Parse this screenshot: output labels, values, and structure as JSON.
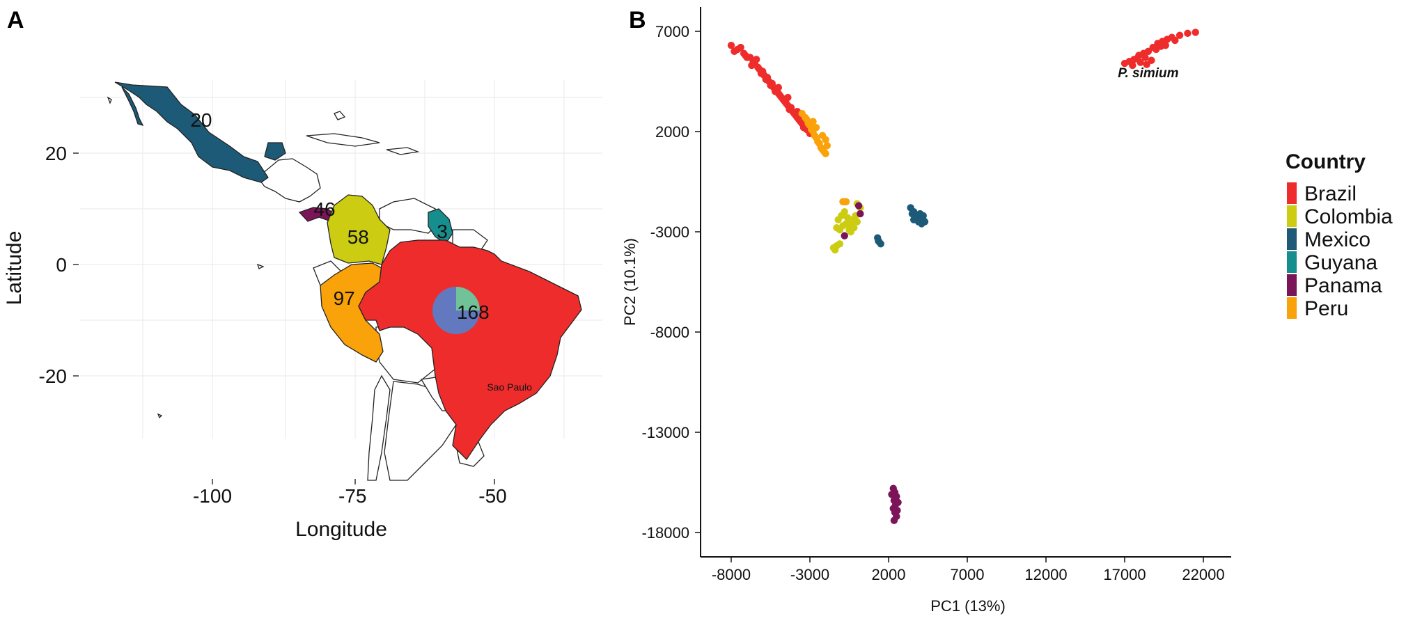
{
  "panels": {
    "a": "A",
    "b": "B"
  },
  "colors": {
    "Brazil": "#ef2c2c",
    "Colombia": "#cccd12",
    "Mexico": "#1c5a77",
    "Guyana": "#178e8e",
    "Panama": "#7b1459",
    "Peru": "#f9a20a",
    "pie_blue": "#6279bf",
    "pie_green": "#72c299"
  },
  "chart_data": [
    {
      "type": "map",
      "panel": "A",
      "xlabel": "Longitude",
      "ylabel": "Latitude",
      "xlim": [
        -120,
        -30
      ],
      "ylim": [
        -35,
        32
      ],
      "xticks": [
        -100,
        -75,
        -50
      ],
      "yticks": [
        -20,
        0,
        20
      ],
      "sample_counts": [
        {
          "country": "Mexico",
          "n": "20",
          "lon": -102,
          "lat": 26
        },
        {
          "country": "Panama",
          "n": "46",
          "lon": -80,
          "lat": 10
        },
        {
          "country": "Colombia",
          "n": "58",
          "lon": -74,
          "lat": 5
        },
        {
          "country": "Guyana",
          "n": "3",
          "lon": -59,
          "lat": 6
        },
        {
          "country": "Peru",
          "n": "97",
          "lon": -76.5,
          "lat": -6
        },
        {
          "country": "Brazil",
          "n": "168",
          "lon": -53.5,
          "lat": -8.5
        }
      ],
      "annotation": {
        "text": "Sao Paulo",
        "lon": -47,
        "lat": -22
      },
      "pie": {
        "lon": -55.5,
        "lat": -8,
        "slices": [
          0.75,
          0.25
        ]
      }
    },
    {
      "type": "scatter",
      "panel": "B",
      "xlabel": "PC1 (13%)",
      "ylabel": "PC2 (10.1%)",
      "xlim": [
        -9000,
        23000
      ],
      "ylim": [
        -20000,
        8500
      ],
      "xticks": [
        -8000,
        -3000,
        2000,
        7000,
        12000,
        17000,
        22000
      ],
      "yticks": [
        7000,
        2000,
        -3000,
        -8000,
        -13000,
        -18000
      ],
      "annotation": {
        "text": "P. simium",
        "x": 18500,
        "y": 4700
      },
      "legend": {
        "title": "Country",
        "entries": [
          "Brazil",
          "Colombia",
          "Mexico",
          "Guyana",
          "Panama",
          "Peru"
        ],
        "position": "right"
      },
      "clusters": [
        {
          "country": "Brazil",
          "label": "P. simium",
          "points": [
            [
              17000,
              5400
            ],
            [
              17300,
              5500
            ],
            [
              17600,
              5600
            ],
            [
              17900,
              5800
            ],
            [
              18200,
              5900
            ],
            [
              18500,
              6000
            ],
            [
              18800,
              6200
            ],
            [
              19100,
              6400
            ],
            [
              19400,
              6500
            ],
            [
              19700,
              6600
            ],
            [
              20000,
              6700
            ],
            [
              20500,
              6800
            ],
            [
              21000,
              6900
            ],
            [
              21500,
              6950
            ],
            [
              17500,
              5300
            ],
            [
              18000,
              5450
            ],
            [
              18300,
              5700
            ],
            [
              18700,
              5550
            ],
            [
              19000,
              6100
            ],
            [
              19300,
              6250
            ],
            [
              19600,
              6300
            ],
            [
              17800,
              5650
            ],
            [
              18400,
              5350
            ],
            [
              20200,
              6550
            ]
          ]
        },
        {
          "country": "Brazil",
          "points": [
            [
              -8000,
              6300
            ],
            [
              -7600,
              6100
            ],
            [
              -7200,
              5900
            ],
            [
              -6800,
              5700
            ],
            [
              -6500,
              5400
            ],
            [
              -6200,
              5100
            ],
            [
              -5900,
              4800
            ],
            [
              -5600,
              4500
            ],
            [
              -5300,
              4200
            ],
            [
              -5000,
              3900
            ],
            [
              -4700,
              3600
            ],
            [
              -4400,
              3300
            ],
            [
              -4100,
              3000
            ],
            [
              -3800,
              2700
            ],
            [
              -3500,
              2400
            ],
            [
              -3200,
              2100
            ],
            [
              -7800,
              6000
            ],
            [
              -7400,
              6200
            ],
            [
              -7000,
              5700
            ],
            [
              -6600,
              5500
            ],
            [
              -6300,
              5200
            ],
            [
              -6000,
              5000
            ],
            [
              -5700,
              4700
            ],
            [
              -5400,
              4400
            ],
            [
              -5100,
              4100
            ],
            [
              -4800,
              3700
            ],
            [
              -4500,
              3400
            ],
            [
              -4200,
              3200
            ],
            [
              -3900,
              2800
            ],
            [
              -3600,
              2500
            ],
            [
              -3300,
              2300
            ],
            [
              -3000,
              1900
            ],
            [
              -6700,
              5300
            ],
            [
              -6100,
              4900
            ],
            [
              -5500,
              4300
            ],
            [
              -4900,
              3800
            ],
            [
              -4300,
              3100
            ],
            [
              -3700,
              2600
            ],
            [
              -5800,
              4600
            ],
            [
              -5200,
              4000
            ],
            [
              -4600,
              3500
            ],
            [
              -4000,
              2900
            ],
            [
              -3400,
              2200
            ],
            [
              -7100,
              5800
            ],
            [
              -6400,
              5600
            ],
            [
              -5000,
              4200
            ],
            [
              -4400,
              3700
            ],
            [
              -3800,
              3000
            ]
          ]
        },
        {
          "country": "Peru",
          "points": [
            [
              -3500,
              2900
            ],
            [
              -3200,
              2600
            ],
            [
              -3000,
              2300
            ],
            [
              -2800,
              2000
            ],
            [
              -2600,
              1700
            ],
            [
              -2400,
              1400
            ],
            [
              -2200,
              1100
            ],
            [
              -2000,
              900
            ],
            [
              -3300,
              2700
            ],
            [
              -3100,
              2400
            ],
            [
              -2900,
              2100
            ],
            [
              -2700,
              1800
            ],
            [
              -2500,
              1500
            ],
            [
              -2300,
              1200
            ],
            [
              -2100,
              1000
            ],
            [
              -1900,
              1300
            ],
            [
              -2000,
              1600
            ],
            [
              -2200,
              1800
            ],
            [
              -2600,
              2200
            ],
            [
              -2800,
              2500
            ]
          ]
        },
        {
          "country": "Peru",
          "points": [
            [
              -900,
              -1500
            ],
            [
              -800,
              -1500
            ],
            [
              -700,
              -1500
            ]
          ]
        },
        {
          "country": "Colombia",
          "points": [
            [
              -1200,
              -2400
            ],
            [
              -1000,
              -2200
            ],
            [
              -800,
              -2000
            ],
            [
              -600,
              -2300
            ],
            [
              -400,
              -2600
            ],
            [
              -200,
              -2800
            ],
            [
              0,
              -2500
            ],
            [
              -1300,
              -2800
            ],
            [
              -1100,
              -2900
            ],
            [
              -900,
              -2700
            ],
            [
              -700,
              -2600
            ],
            [
              -500,
              -2900
            ],
            [
              -300,
              -2400
            ],
            [
              -100,
              -2200
            ],
            [
              -1500,
              -3800
            ],
            [
              -1300,
              -3700
            ],
            [
              -1100,
              -3600
            ],
            [
              -1400,
              -3900
            ],
            [
              -800,
              -3200
            ],
            [
              -400,
              -3000
            ],
            [
              200,
              -1800
            ],
            [
              0,
              -1600
            ]
          ]
        },
        {
          "country": "Panama",
          "points": [
            [
              100,
              -1700
            ],
            [
              200,
              -2100
            ],
            [
              -800,
              -3200
            ],
            [
              2300,
              -15800
            ],
            [
              2400,
              -16000
            ],
            [
              2500,
              -16200
            ],
            [
              2350,
              -16400
            ],
            [
              2450,
              -16600
            ],
            [
              2300,
              -16800
            ],
            [
              2400,
              -17000
            ],
            [
              2500,
              -17200
            ],
            [
              2350,
              -17400
            ],
            [
              2200,
              -16100
            ],
            [
              2600,
              -16500
            ],
            [
              2550,
              -16900
            ]
          ]
        },
        {
          "country": "Mexico",
          "points": [
            [
              3400,
              -1800
            ],
            [
              3600,
              -2000
            ],
            [
              3800,
              -2200
            ],
            [
              4000,
              -2300
            ],
            [
              4200,
              -2400
            ],
            [
              3500,
              -2100
            ],
            [
              3700,
              -2300
            ],
            [
              3900,
              -2500
            ],
            [
              4100,
              -2600
            ],
            [
              4300,
              -2500
            ],
            [
              3600,
              -2400
            ],
            [
              4000,
              -2100
            ],
            [
              4200,
              -2200
            ],
            [
              1300,
              -3300
            ],
            [
              1400,
              -3500
            ],
            [
              1500,
              -3600
            ],
            [
              1350,
              -3450
            ]
          ]
        }
      ]
    }
  ]
}
